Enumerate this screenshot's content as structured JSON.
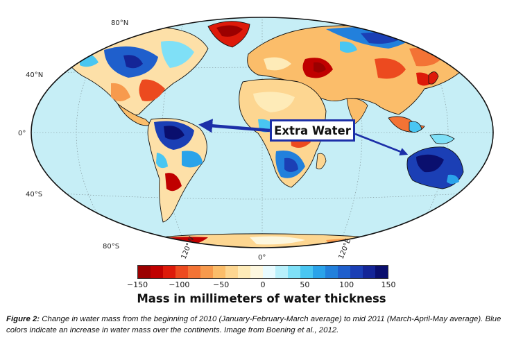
{
  "map": {
    "lat_labels": [
      "80°N",
      "40°N",
      "0°",
      "40°S",
      "80°S"
    ],
    "lon_labels": [
      "120°W",
      "0°",
      "120°E"
    ],
    "callout_text": "Extra Water",
    "ocean_color": "#c6eef6",
    "arrow_color": "#1c2fa8"
  },
  "colorbar": {
    "ticks": [
      "−150",
      "−100",
      "−50",
      "0",
      "50",
      "100",
      "150"
    ],
    "range": [
      -150,
      150
    ],
    "colors": [
      "#9b0000",
      "#c00000",
      "#dd1a0a",
      "#ec4a1f",
      "#f37335",
      "#f79a4d",
      "#fbbd6a",
      "#fdd691",
      "#feebb8",
      "#fdf7df",
      "#e8fbff",
      "#b8f0fb",
      "#7fe0f7",
      "#49c6f2",
      "#2aa3ea",
      "#2280dc",
      "#1f5fcc",
      "#1b3fb5",
      "#142597",
      "#0a0f6e"
    ],
    "title": "Mass in millimeters of water thickness"
  },
  "caption": {
    "label": "Figure 2:",
    "text": " Change in water mass from the beginning of 2010 (January-February-March average) to mid 2011 (March-April-May average). Blue colors indicate an increase in water mass over the continents.  Image from Boening et al., 2012."
  }
}
